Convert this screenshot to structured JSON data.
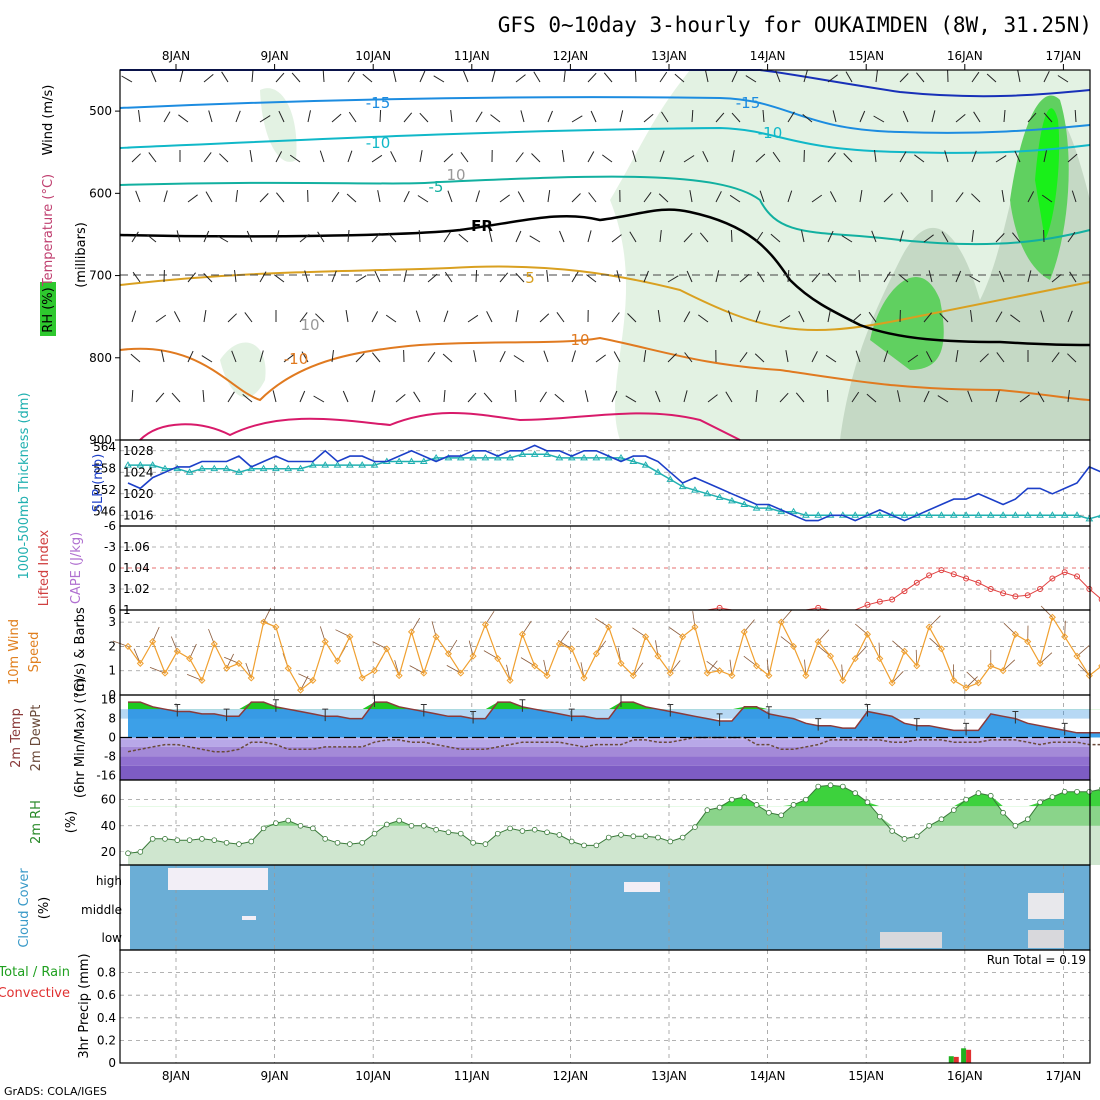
{
  "title": "GFS 0~10day 3-hourly for OUKAIMDEN (8W, 31.25N)",
  "credit": "GrADS: COLA/IGES",
  "run_total": "Run Total = 0.19",
  "dates": [
    "8JAN",
    "9JAN",
    "10JAN",
    "11JAN",
    "12JAN",
    "13JAN",
    "14JAN",
    "15JAN",
    "16JAN",
    "17JAN"
  ],
  "panels": {
    "upper_air": {
      "label_rh": "RH (%)",
      "label_temp": "Temperature (°C)",
      "label_wind": "Wind (m/s)",
      "label_pressure": "(millibars)",
      "pressure_ticks": [
        "500",
        "600",
        "700",
        "800",
        "900"
      ],
      "temp_labels": [
        "-15",
        "-15",
        "-10",
        "-10",
        "-5",
        "FR",
        "5",
        "10",
        "-10",
        "10",
        "10"
      ]
    },
    "slp": {
      "label_thk": "1000-500mb Thickness (dm)",
      "label_slp": "SLP (mb)",
      "thk_ticks": [
        "564",
        "558",
        "552",
        "546"
      ],
      "slp_ticks": [
        "1028",
        "1024",
        "1020",
        "1016"
      ]
    },
    "cape": {
      "label_li": "Lifted Index",
      "label_cape": "CAPE (J/kg)",
      "li_ticks": [
        "-6",
        "-3",
        "0",
        "3",
        "6"
      ],
      "cape_ticks": [
        "1.06",
        "1.04",
        "1.02",
        "1"
      ]
    },
    "wind10": {
      "label1": "10m Wind",
      "label2": "Speed",
      "label3": "(m/s) & Barbs",
      "ticks": [
        "3",
        "2",
        "1",
        "0"
      ]
    },
    "temp2m": {
      "label1": "2m Temp",
      "label2": "2m DewPt",
      "label3": "(6hr Min/Max) (°C)",
      "ticks": [
        "16",
        "8",
        "0",
        "-8",
        "-16"
      ]
    },
    "rh2m": {
      "label1": "2m RH",
      "label2": "(%)",
      "ticks": [
        "60",
        "40",
        "20"
      ]
    },
    "cloud": {
      "label1": "Cloud Cover",
      "label2": "(%)",
      "levels": [
        "high",
        "middle",
        "low"
      ]
    },
    "precip": {
      "label1": "Total / Rain",
      "label2": "Convective",
      "label3": "3hr Precip (mm)",
      "ticks": [
        "0.8",
        "0.6",
        "0.4",
        "0.2",
        "0"
      ]
    }
  },
  "chart_data": {
    "type": "meteogram",
    "x": {
      "start": "8JAN",
      "step_hours": 3,
      "points": 81,
      "labels": [
        "8JAN",
        "9JAN",
        "10JAN",
        "11JAN",
        "12JAN",
        "13JAN",
        "14JAN",
        "15JAN",
        "16JAN",
        "17JAN"
      ]
    },
    "slp": [
      1022,
      1021,
      1023,
      1024,
      1025,
      1025,
      1026,
      1026,
      1026,
      1027,
      1025,
      1026,
      1027,
      1026,
      1026,
      1026,
      1028,
      1026,
      1027,
      1027,
      1026,
      1026,
      1027,
      1028,
      1027,
      1026,
      1027,
      1027,
      1028,
      1028,
      1027,
      1028,
      1028,
      1029,
      1028,
      1028,
      1027,
      1028,
      1028,
      1027,
      1026,
      1027,
      1027,
      1026,
      1024,
      1022,
      1023,
      1022,
      1021,
      1020,
      1019,
      1018,
      1018,
      1017,
      1016,
      1015,
      1015,
      1016,
      1016,
      1015,
      1016,
      1017,
      1016,
      1015,
      1016,
      1017,
      1018,
      1019,
      1019,
      1020,
      1019,
      1018,
      1019,
      1021,
      1021,
      1020,
      1021,
      1022,
      1025,
      1024,
      1024
    ],
    "thickness": [
      559,
      559,
      559,
      558,
      558,
      557,
      558,
      558,
      558,
      557,
      558,
      558,
      558,
      558,
      558,
      559,
      559,
      559,
      559,
      559,
      559,
      560,
      560,
      560,
      560,
      561,
      561,
      561,
      561,
      561,
      561,
      561,
      562,
      562,
      562,
      561,
      561,
      561,
      561,
      561,
      561,
      560,
      559,
      557,
      555,
      553,
      552,
      551,
      550,
      549,
      548,
      547,
      547,
      546,
      546,
      545,
      545,
      545,
      545,
      545,
      545,
      545,
      545,
      545,
      545,
      545,
      545,
      545,
      545,
      545,
      545,
      545,
      545,
      545,
      545,
      545,
      545,
      545,
      544,
      545,
      545
    ],
    "cape": [
      1,
      1,
      1,
      1,
      1,
      1,
      1,
      1,
      1,
      1,
      1,
      1,
      1,
      1,
      1,
      1,
      1,
      1,
      1,
      1,
      1,
      1,
      1,
      1,
      1,
      1,
      1,
      1,
      1,
      1,
      1,
      1,
      1,
      1,
      1,
      1,
      1,
      1,
      1,
      1,
      1,
      1,
      1,
      1,
      1,
      1,
      1,
      1,
      1.002,
      1,
      1,
      1,
      1,
      1,
      1,
      1,
      1.002,
      1,
      1,
      1,
      1.005,
      1.008,
      1.01,
      1.018,
      1.026,
      1.033,
      1.038,
      1.034,
      1.03,
      1.026,
      1.02,
      1.016,
      1.013,
      1.014,
      1.02,
      1.03,
      1.036,
      1.032,
      1.02,
      1.01,
      1
    ],
    "wind10m": [
      2.0,
      1.3,
      2.2,
      0.9,
      1.8,
      1.5,
      0.6,
      2.1,
      1.1,
      1.3,
      0.7,
      3.0,
      2.8,
      1.1,
      0.2,
      0.6,
      2.2,
      1.4,
      2.4,
      0.7,
      1.0,
      1.9,
      0.8,
      2.6,
      0.9,
      2.4,
      1.7,
      0.9,
      1.6,
      2.9,
      1.5,
      0.6,
      2.5,
      1.2,
      0.8,
      2.1,
      1.9,
      0.7,
      1.7,
      2.8,
      1.3,
      0.8,
      2.4,
      1.6,
      0.9,
      2.4,
      2.8,
      0.9,
      1.0,
      0.8,
      2.6,
      1.2,
      0.8,
      3.0,
      2.0,
      0.8,
      2.2,
      1.6,
      0.6,
      1.5,
      2.5,
      1.5,
      0.5,
      1.8,
      1.2,
      2.8,
      1.9,
      0.6,
      0.3,
      0.5,
      1.2,
      1.0,
      2.5,
      2.2,
      1.3,
      3.2,
      2.4,
      1.6,
      0.8,
      1.2,
      0.5
    ],
    "temp2m": [
      15,
      15,
      13,
      12,
      11,
      11,
      10,
      10,
      9,
      9,
      15,
      15,
      13,
      12,
      11,
      10,
      9,
      9,
      8,
      8,
      15,
      15,
      13,
      12,
      11,
      10,
      9,
      9,
      8,
      8,
      15,
      15,
      13,
      12,
      11,
      10,
      9,
      9,
      8,
      8,
      15,
      15,
      13,
      12,
      11,
      10,
      9,
      8,
      7,
      7,
      13,
      13,
      10,
      9,
      8,
      6,
      5,
      5,
      4,
      4,
      11,
      10,
      9,
      6,
      5,
      5,
      4,
      3,
      3,
      3,
      10,
      9,
      8,
      6,
      5,
      4,
      3,
      2,
      2,
      2,
      2
    ],
    "dewpoint2m": [
      -6,
      -5,
      -4,
      -3,
      -3,
      -4,
      -5,
      -6,
      -6,
      -5,
      -2,
      -2,
      -3,
      -5,
      -5,
      -5,
      -4,
      -4,
      -4,
      -4,
      -2,
      -1,
      -1,
      -2,
      -2,
      -3,
      -4,
      -5,
      -5,
      -5,
      -4,
      -3,
      -2,
      -2,
      -2,
      -2,
      -3,
      -4,
      -3,
      -3,
      -3,
      -1,
      -1,
      -2,
      -2,
      -1,
      0,
      0,
      0,
      0,
      0,
      -3,
      -3,
      -5,
      -5,
      -4,
      -3,
      -1,
      -1,
      -1,
      -1,
      -1,
      -2,
      -2,
      -1,
      -1,
      -1,
      -2,
      -2,
      -2,
      -1,
      -1,
      -1,
      -2,
      -3,
      -2,
      -2,
      -2,
      -3,
      -3,
      -4
    ],
    "rh2m": [
      19,
      20,
      30,
      30,
      29,
      29,
      30,
      29,
      27,
      26,
      28,
      38,
      42,
      44,
      40,
      38,
      30,
      27,
      26,
      27,
      34,
      41,
      44,
      40,
      40,
      37,
      35,
      34,
      27,
      26,
      34,
      38,
      36,
      37,
      35,
      33,
      28,
      25,
      25,
      31,
      33,
      32,
      32,
      31,
      28,
      31,
      39,
      52,
      54,
      60,
      62,
      56,
      50,
      48,
      56,
      60,
      70,
      71,
      70,
      65,
      58,
      47,
      36,
      30,
      32,
      40,
      45,
      52,
      60,
      65,
      63,
      50,
      40,
      45,
      58,
      62,
      66,
      66,
      66,
      68,
      60
    ],
    "precip_total": [
      0,
      0,
      0,
      0,
      0,
      0,
      0,
      0,
      0,
      0,
      0,
      0,
      0,
      0,
      0,
      0,
      0,
      0,
      0,
      0,
      0,
      0,
      0,
      0,
      0,
      0,
      0,
      0,
      0,
      0,
      0,
      0,
      0,
      0,
      0,
      0,
      0,
      0,
      0,
      0,
      0,
      0,
      0,
      0,
      0,
      0,
      0,
      0,
      0,
      0,
      0,
      0,
      0,
      0,
      0,
      0,
      0,
      0,
      0,
      0,
      0,
      0,
      0,
      0,
      0,
      0,
      0,
      0.06,
      0.13,
      0,
      0,
      0,
      0,
      0,
      0,
      0,
      0,
      0,
      0,
      0,
      0
    ],
    "upper_axes": {
      "pressure_range": [
        450,
        900
      ],
      "slp_range": [
        1014,
        1030
      ],
      "thickness_range": [
        542,
        566
      ],
      "cape_range": [
        1,
        1.08
      ],
      "lifted_index_range": [
        -6,
        6
      ],
      "wind_range": [
        0,
        3.5
      ],
      "temp_range": [
        -18,
        18
      ],
      "rh_range": [
        10,
        75
      ],
      "precip_range": [
        0,
        1
      ]
    }
  },
  "colors": {
    "temp_fill_warm": "#1fc91f",
    "temp_fill_main": "#3ca0e8",
    "temp_fill_cold": "#a98ad8",
    "rh_fill": "#3dd23d",
    "cloud_bg": "#6baed6",
    "wind_line": "#f0a030",
    "slp_line": "#1c3fc8",
    "thk_line": "#20b0b0",
    "cape_line": "#e04040"
  }
}
